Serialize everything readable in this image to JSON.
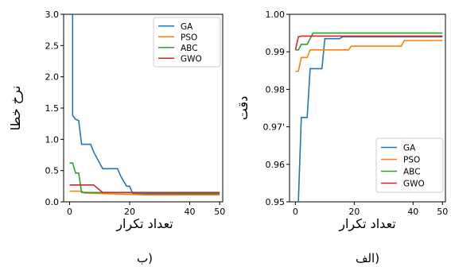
{
  "chart_data": [
    {
      "id": "left",
      "type": "line",
      "caption": "ب)",
      "xlabel": "تعداد تکرار",
      "ylabel": "نرخ خطا",
      "xlim": [
        -2,
        51
      ],
      "ylim": [
        0,
        3.0
      ],
      "xticks": [
        0,
        20,
        40,
        50
      ],
      "xtick_labels": [
        "0",
        "20",
        "40",
        "50"
      ],
      "yticks": [
        0,
        0.5,
        1.0,
        1.5,
        2.0,
        2.5,
        3.0
      ],
      "ytick_labels": [
        "0.0",
        "0.5",
        "1.0",
        "1.5",
        "2.0",
        "2.5",
        "3.0"
      ],
      "legend_position": "top-right",
      "series": [
        {
          "name": "GA",
          "color": "#1f77b4",
          "x": [
            1,
            1,
            2,
            3,
            4,
            7,
            8,
            11,
            12,
            16,
            17,
            19,
            20,
            21,
            50
          ],
          "y": [
            3.0,
            1.38,
            1.32,
            1.3,
            0.92,
            0.92,
            0.8,
            0.53,
            0.53,
            0.53,
            0.41,
            0.25,
            0.25,
            0.13,
            0.13
          ]
        },
        {
          "name": "PSO",
          "color": "#ff7f0e",
          "x": [
            0,
            4,
            5,
            26,
            50
          ],
          "y": [
            0.17,
            0.17,
            0.14,
            0.11,
            0.11
          ]
        },
        {
          "name": "ABC",
          "color": "#2ca02c",
          "x": [
            0,
            1,
            2,
            3,
            4,
            5,
            50
          ],
          "y": [
            0.62,
            0.62,
            0.46,
            0.46,
            0.15,
            0.15,
            0.14
          ]
        },
        {
          "name": "GWO",
          "color": "#d62728",
          "x": [
            0,
            8,
            11,
            12,
            50
          ],
          "y": [
            0.27,
            0.27,
            0.15,
            0.15,
            0.15
          ]
        }
      ]
    },
    {
      "id": "right",
      "type": "line",
      "caption": "الف)",
      "xlabel": "تعداد تکرار",
      "ylabel": "دقت",
      "xlim": [
        -2,
        51
      ],
      "ylim": [
        0.95,
        1.0
      ],
      "xticks": [
        0,
        20,
        40,
        50
      ],
      "xtick_labels": [
        "0",
        "20",
        "40",
        "50"
      ],
      "yticks": [
        0.95,
        0.96,
        0.97,
        0.98,
        0.99,
        1.0
      ],
      "ytick_labels": [
        "0.95",
        "0.96",
        "0.97'",
        "0.98",
        "0.99",
        "1.00"
      ],
      "legend_position": "bottom-right",
      "series": [
        {
          "name": "GA",
          "color": "#1f77b4",
          "x": [
            1,
            2,
            3,
            4,
            5,
            6,
            9,
            10,
            15,
            16,
            50
          ],
          "y": [
            0.95,
            0.9725,
            0.9725,
            0.9725,
            0.9855,
            0.9855,
            0.9855,
            0.9935,
            0.9935,
            0.994,
            0.994
          ]
        },
        {
          "name": "PSO",
          "color": "#ff7f0e",
          "x": [
            0,
            1,
            2,
            4,
            5,
            18,
            19,
            36,
            37,
            50
          ],
          "y": [
            0.9848,
            0.9848,
            0.9885,
            0.9885,
            0.9905,
            0.9905,
            0.9915,
            0.9915,
            0.993,
            0.993
          ]
        },
        {
          "name": "ABC",
          "color": "#2ca02c",
          "x": [
            0,
            1,
            2,
            4,
            5,
            6,
            50
          ],
          "y": [
            0.9905,
            0.9905,
            0.992,
            0.992,
            0.9935,
            0.995,
            0.995
          ]
        },
        {
          "name": "GWO",
          "color": "#d62728",
          "x": [
            0,
            1,
            2,
            50
          ],
          "y": [
            0.9905,
            0.994,
            0.9942,
            0.9942
          ]
        }
      ]
    }
  ]
}
